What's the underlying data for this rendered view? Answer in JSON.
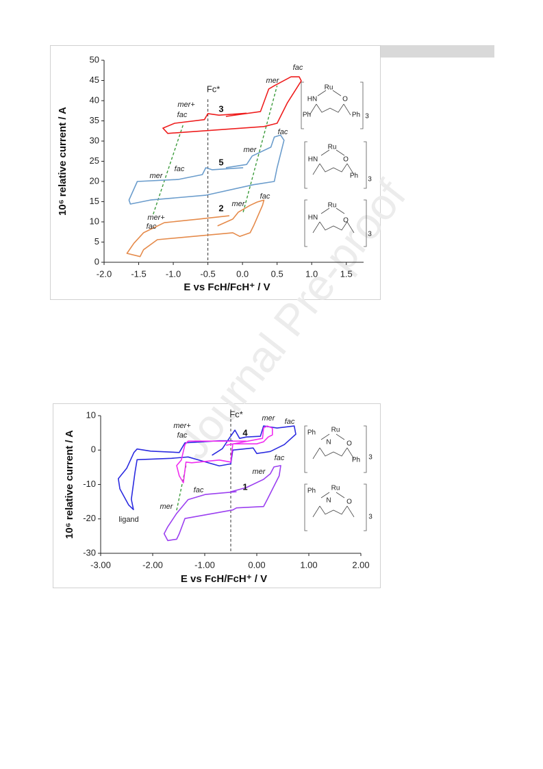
{
  "watermark": "Journal Pre-proof",
  "chart_data": [
    {
      "type": "line",
      "xlabel": "E vs FcH/FcH⁺ / V",
      "ylabel": "10⁶ relative current / A",
      "xlim": [
        -2,
        1.75
      ],
      "ylim": [
        0,
        50
      ],
      "xticks": [
        {
          "value": -2,
          "label": "-2.0"
        },
        {
          "value": -1.5,
          "label": "-1.5"
        },
        {
          "value": -1,
          "label": "-1.0"
        },
        {
          "value": -0.5,
          "label": "-0.5"
        },
        {
          "value": 0,
          "label": "0.0"
        },
        {
          "value": 0.5,
          "label": "0.5"
        },
        {
          "value": 1,
          "label": "1.0"
        },
        {
          "value": 1.5,
          "label": "1.5"
        }
      ],
      "yticks": [
        0,
        5,
        10,
        15,
        20,
        25,
        30,
        35,
        40,
        45,
        50
      ],
      "reference": {
        "label": "Fc*",
        "x": -0.5
      },
      "series": [
        {
          "name": "3",
          "color": "#ee1c1c",
          "x": [
            -0.24,
            0.26,
            0.38,
            0.46,
            0.7,
            0.82,
            0.85,
            0.65,
            0.5,
            0.31,
            -1.08,
            -1.15,
            -0.98,
            -0.55,
            -0.5,
            -0.34,
            0.06
          ],
          "values": [
            36.1,
            37.3,
            42.9,
            43.7,
            45.9,
            45.9,
            44.9,
            39.5,
            34.4,
            33.6,
            31.9,
            33.2,
            34.4,
            35.3,
            36.8,
            36.4,
            36.9
          ]
        },
        {
          "name": "5",
          "color": "#6a9ccc",
          "x": [
            -0.24,
            0.06,
            0.14,
            0.41,
            0.46,
            0.55,
            0.6,
            0.5,
            0.46,
            0.16,
            -0.53,
            -1.33,
            -1.62,
            -1.64,
            -1.52,
            -0.93,
            -0.58,
            -0.53,
            -0.44,
            0.01
          ],
          "values": [
            23.4,
            24.2,
            26.3,
            28.5,
            31.0,
            31.5,
            30.2,
            23.4,
            20.0,
            19.2,
            16.6,
            15.4,
            14.4,
            15.4,
            20.0,
            20.5,
            21.7,
            23.4,
            22.9,
            23.4
          ]
        },
        {
          "name": "2",
          "color": "#e58a4a",
          "x": [
            -0.36,
            -0.14,
            -0.06,
            0.11,
            0.21,
            0.31,
            0.29,
            0.16,
            0.11,
            -0.04,
            -0.14,
            -1.23,
            -1.43,
            -1.48,
            -1.67,
            -1.57,
            -1.43,
            -1.13,
            -0.63,
            -0.19
          ],
          "values": [
            9.0,
            10.7,
            12.4,
            14.1,
            14.9,
            15.4,
            14.1,
            9.0,
            7.3,
            6.4,
            7.3,
            5.6,
            3.1,
            1.4,
            2.2,
            4.7,
            7.3,
            9.8,
            10.7,
            11.5
          ]
        }
      ],
      "guides": {
        "color": "#3a9a3a",
        "lines": [
          {
            "x": [
              -1.29,
              -0.86
            ],
            "values": [
              11.9,
              33.9
            ]
          },
          {
            "x": [
              0.01,
              0.5
            ],
            "values": [
              12.4,
              43.7
            ]
          }
        ]
      },
      "annotations": [
        "fac",
        "mer",
        "mer+",
        "fac",
        "mer",
        "fac",
        "fac",
        "mer",
        "mer",
        "fac",
        "mer+",
        "fac"
      ],
      "structures": [
        {
          "labels": [
            "Ru",
            "HN",
            "O",
            "Ph",
            "Ph",
            "3"
          ]
        },
        {
          "labels": [
            "Ru",
            "HN",
            "O",
            "Ph",
            "3"
          ]
        },
        {
          "labels": [
            "Ru",
            "HN",
            "O",
            "3"
          ]
        }
      ]
    },
    {
      "type": "line",
      "xlabel": "E vs FcH/FcH⁺ / V",
      "ylabel": "10⁶ relative current / A",
      "xlim": [
        -3,
        2
      ],
      "ylim": [
        -30,
        10
      ],
      "xticks": [
        {
          "value": -3,
          "label": "-3.00"
        },
        {
          "value": -2,
          "label": "-2.00"
        },
        {
          "value": -1,
          "label": "-1.00"
        },
        {
          "value": 0,
          "label": "0.00"
        },
        {
          "value": 1,
          "label": "1.00"
        },
        {
          "value": 2,
          "label": "2.00"
        }
      ],
      "yticks": [
        -30,
        -20,
        -10,
        0,
        10
      ],
      "reference": {
        "label": "Fc*",
        "x": -0.5
      },
      "series": [
        {
          "color": "#2a2ae0",
          "x": [
            -0.86,
            -0.66,
            -0.53,
            -0.42,
            -0.33,
            -0.2,
            0.07,
            0.13,
            0.39,
            0.72,
            0.75,
            0.53,
            0.26,
            0.0,
            -0.07,
            -0.46,
            -0.5,
            -0.72,
            -1.32,
            -1.64,
            -2.3,
            -2.34,
            -2.41,
            -2.37,
            -2.46,
            -2.63,
            -2.66,
            -2.5,
            -2.36,
            -2.3,
            -2.04,
            -1.49,
            -1.38,
            -0.72,
            -0.46
          ],
          "values": [
            -1.5,
            0.4,
            3.4,
            5.8,
            3.4,
            3.8,
            4.0,
            7.0,
            6.4,
            7.0,
            4.6,
            1.6,
            -0.4,
            -1.0,
            0.6,
            0.0,
            -4.0,
            -4.6,
            -2.0,
            -2.4,
            -2.8,
            -6.4,
            -14.3,
            -17.3,
            -16,
            -11.3,
            -8.3,
            -5.3,
            -0.7,
            0.3,
            -0.3,
            -0.7,
            2.1,
            2.7,
            2.7
          ]
        },
        {
          "name": "4",
          "color": "#f02cf0",
          "x": [
            -0.59,
            0.11,
            0.13,
            0.2,
            0.3,
            0.3,
            0.22,
            0.13,
            0.0,
            -0.46,
            -0.5,
            -0.72,
            -1.25,
            -1.36,
            -1.41,
            -1.49,
            -1.54,
            -1.45,
            -1.38,
            -1.32,
            -0.99,
            -0.2
          ],
          "values": [
            1.4,
            3.4,
            6.4,
            7.0,
            6.4,
            4.4,
            3.8,
            2.4,
            1.8,
            1.8,
            -3.5,
            -2.9,
            -3.7,
            -3.5,
            -9.5,
            -7.5,
            -4.5,
            -2.9,
            1.6,
            2.6,
            2.6,
            2.6
          ]
        },
        {
          "name": "1",
          "color": "#9b3ff0",
          "x": [
            -0.5,
            -0.2,
            0.13,
            0.26,
            0.33,
            0.46,
            0.43,
            0.2,
            0.13,
            -0.39,
            -0.46,
            -1.38,
            -1.49,
            -1.54,
            -1.71,
            -1.78,
            -1.71,
            -1.54,
            -1.32,
            -0.99,
            -0.39
          ],
          "values": [
            -12.1,
            -10.9,
            -8.5,
            -6.9,
            -4.9,
            -4.5,
            -7.5,
            -14.4,
            -16.4,
            -16.8,
            -17.4,
            -19.9,
            -24.3,
            -25.9,
            -26.3,
            -24.3,
            -22.3,
            -18.4,
            -14.4,
            -12.9,
            -12.1
          ]
        }
      ],
      "guides": {
        "color": "#3a9a3a",
        "lines": [
          {
            "x": [
              -1.54,
              -1.36
            ],
            "values": [
              -17.5,
              -4.5
            ]
          }
        ]
      },
      "annotations": [
        "mer+",
        "fac",
        "mer",
        "fac",
        "fac",
        "mer",
        "fac",
        "mer",
        "ligand"
      ],
      "structures": [
        {
          "labels": [
            "Ph",
            "Ru",
            "N",
            "O",
            "Ph",
            "3"
          ]
        },
        {
          "labels": [
            "Ph",
            "Ru",
            "N",
            "O",
            "3"
          ]
        }
      ]
    }
  ]
}
